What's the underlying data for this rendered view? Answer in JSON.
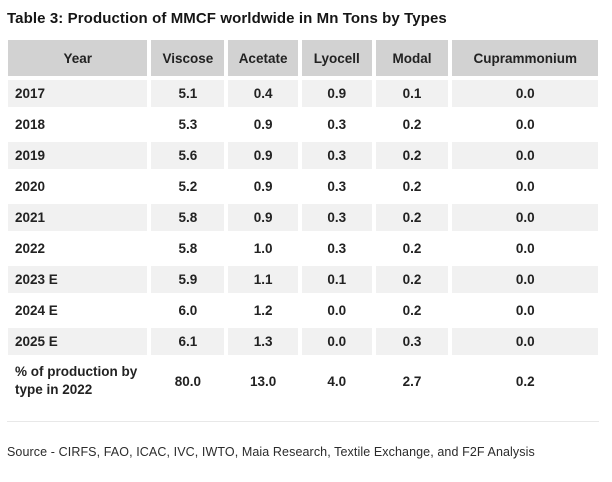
{
  "title": "Table 3: Production of MMCF worldwide in Mn Tons by Types",
  "table": {
    "columns": [
      "Year",
      "Viscose",
      "Acetate",
      "Lyocell",
      "Modal",
      "Cuprammonium"
    ],
    "unit": "Mn Tons",
    "rows": [
      {
        "year": "2017",
        "values": [
          "5.1",
          "0.4",
          "0.9",
          "0.1",
          "0.0"
        ]
      },
      {
        "year": "2018",
        "values": [
          "5.3",
          "0.9",
          "0.3",
          "0.2",
          "0.0"
        ]
      },
      {
        "year": "2019",
        "values": [
          "5.6",
          "0.9",
          "0.3",
          "0.2",
          "0.0"
        ]
      },
      {
        "year": "2020",
        "values": [
          "5.2",
          "0.9",
          "0.3",
          "0.2",
          "0.0"
        ]
      },
      {
        "year": "2021",
        "values": [
          "5.8",
          "0.9",
          "0.3",
          "0.2",
          "0.0"
        ]
      },
      {
        "year": "2022",
        "values": [
          "5.8",
          "1.0",
          "0.3",
          "0.2",
          "0.0"
        ]
      },
      {
        "year": "2023 E",
        "values": [
          "5.9",
          "1.1",
          "0.1",
          "0.2",
          "0.0"
        ]
      },
      {
        "year": "2024 E",
        "values": [
          "6.0",
          "1.2",
          "0.0",
          "0.2",
          "0.0"
        ]
      },
      {
        "year": "2025 E",
        "values": [
          "6.1",
          "1.3",
          "0.0",
          "0.3",
          "0.0"
        ]
      },
      {
        "year": "% of production by type in 2022",
        "values": [
          "80.0",
          "13.0",
          "4.0",
          "2.7",
          "0.2"
        ]
      }
    ]
  },
  "source": "Source - CIRFS, FAO, ICAC, IVC, IWTO, Maia Research, Textile Exchange, and F2F Analysis",
  "colors": {
    "header_bg": "#d2d2d2",
    "stripe_bg": "#f1f1f1",
    "row_bg": "#ffffff",
    "text": "#222222",
    "divider": "#e8e8e8"
  }
}
